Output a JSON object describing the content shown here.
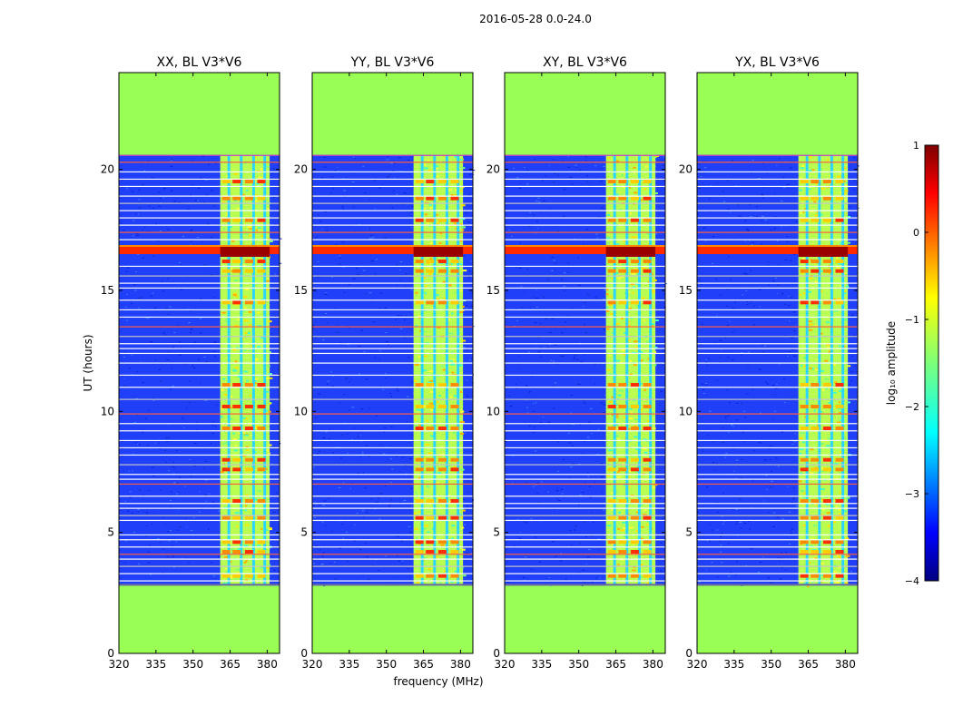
{
  "figure_title": "2016-05-28 0.0-24.0",
  "colors": {
    "nodata": "#99ff55",
    "background_noise": "#1f3ff8",
    "flag_line": "#ffffff",
    "frame": "#000000"
  },
  "chart_data": {
    "type": "heatmap",
    "suptitle": "2016-05-28 0.0-24.0",
    "panels": [
      {
        "title": "XX, BL V3*V6",
        "pol": "XX"
      },
      {
        "title": "YY, BL V3*V6",
        "pol": "YY"
      },
      {
        "title": "XY, BL V3*V6",
        "pol": "XY"
      },
      {
        "title": "YX, BL V3*V6",
        "pol": "YX"
      }
    ],
    "xlabel": "frequency (MHz)",
    "ylabel": "UT (hours)",
    "xlim": [
      320,
      385
    ],
    "ylim": [
      0,
      24
    ],
    "xticks": [
      320,
      335,
      350,
      365,
      380
    ],
    "yticks": [
      0,
      5,
      10,
      15,
      20
    ],
    "data_extent_hours": [
      2.8,
      20.6
    ],
    "bright_band_mhz": [
      361,
      381
    ],
    "rfi_columns_mhz": [
      364.5,
      369.5,
      374.5,
      379
    ],
    "strong_rfi_hours": [
      16.5,
      16.8
    ],
    "colorbar": {
      "label": "log₁₀ amplitude",
      "min": -4,
      "max": 1,
      "ticks": [
        1,
        0,
        -1,
        -2,
        -3,
        -4
      ],
      "tick_labels": [
        "1",
        "0",
        "−1",
        "−2",
        "−3",
        "−4"
      ],
      "colormap": "jet"
    }
  }
}
